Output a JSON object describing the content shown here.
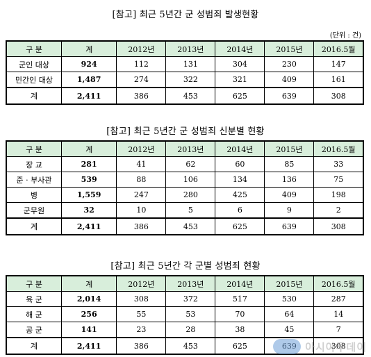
{
  "unit_note": "(단위 : 건)",
  "years": [
    "2012년",
    "2013년",
    "2014년",
    "2015년",
    "2016.5월"
  ],
  "header": {
    "category": "구  분",
    "total": "계"
  },
  "tables": [
    {
      "title": "[참고] 최근 5년간 군 성범죄 발생현황",
      "rows": [
        {
          "label": "군인 대상",
          "total": "924",
          "values": [
            "112",
            "131",
            "304",
            "230",
            "147"
          ]
        },
        {
          "label": "민간인 대상",
          "total": "1,487",
          "values": [
            "274",
            "322",
            "321",
            "409",
            "161"
          ]
        },
        {
          "label": "계",
          "total": "2,411",
          "values": [
            "386",
            "453",
            "625",
            "639",
            "308"
          ]
        }
      ]
    },
    {
      "title": "[참고] 최근 5년간 군 성범죄 신분별 현황",
      "rows": [
        {
          "label": "장  교",
          "total": "281",
          "values": [
            "41",
            "62",
            "60",
            "85",
            "33"
          ]
        },
        {
          "label": "준 · 부사관",
          "total": "539",
          "values": [
            "88",
            "106",
            "134",
            "136",
            "75"
          ]
        },
        {
          "label": "병",
          "total": "1,559",
          "values": [
            "247",
            "280",
            "425",
            "409",
            "198"
          ]
        },
        {
          "label": "군무원",
          "total": "32",
          "values": [
            "10",
            "5",
            "6",
            "9",
            "2"
          ]
        },
        {
          "label": "계",
          "total": "2,411",
          "values": [
            "386",
            "453",
            "625",
            "639",
            "308"
          ]
        }
      ]
    },
    {
      "title": "[참고] 최근 5년간 각 군별 성범죄 현황",
      "rows": [
        {
          "label": "육  군",
          "total": "2,014",
          "values": [
            "308",
            "372",
            "517",
            "530",
            "287"
          ]
        },
        {
          "label": "해  군",
          "total": "256",
          "values": [
            "55",
            "53",
            "70",
            "64",
            "14"
          ]
        },
        {
          "label": "공  군",
          "total": "141",
          "values": [
            "23",
            "28",
            "38",
            "45",
            "7"
          ]
        },
        {
          "label": "계",
          "total": "2,411",
          "values": [
            "386",
            "453",
            "625",
            "639",
            "308"
          ]
        }
      ]
    }
  ],
  "watermark": "아시아투데이"
}
